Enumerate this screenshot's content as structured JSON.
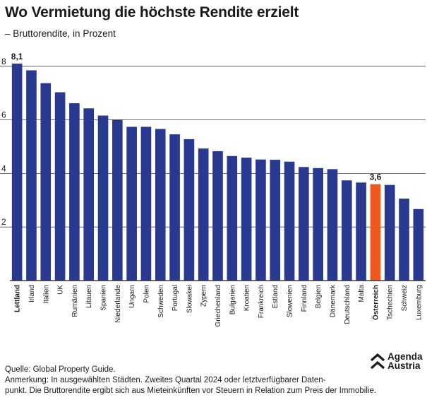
{
  "title": "Wo Vermietung die höchste Rendite erzielt",
  "subtitle": "– Bruttorendite, in Prozent",
  "chart_data": {
    "type": "bar",
    "title": "Wo Vermietung die höchste Rendite erzielt",
    "subtitle": "– Bruttorendite, in Prozent",
    "xlabel": "",
    "ylabel": "",
    "ylim": [
      0,
      8.4
    ],
    "yticks": [
      2,
      4,
      6,
      8
    ],
    "grid": true,
    "categories": [
      "Lettland",
      "Irland",
      "Italien",
      "UK",
      "Rumänien",
      "Litauen",
      "Spanien",
      "Niederlande",
      "Ungarn",
      "Polen",
      "Schweden",
      "Portugal",
      "Slowakei",
      "Zypern",
      "Griechenland",
      "Bulgarien",
      "Kroatien",
      "Frankreich",
      "Estland",
      "Slowenien",
      "Finnland",
      "Belgien",
      "Dänemark",
      "Deutschland",
      "Malta",
      "Österreich",
      "Tschechien",
      "Schweiz",
      "Luxemburg"
    ],
    "values": [
      8.1,
      7.85,
      7.37,
      7.03,
      6.62,
      6.43,
      6.16,
      6.01,
      5.74,
      5.74,
      5.66,
      5.46,
      5.28,
      4.93,
      4.83,
      4.65,
      4.59,
      4.52,
      4.51,
      4.44,
      4.24,
      4.2,
      4.16,
      3.74,
      3.66,
      3.6,
      3.57,
      3.06,
      2.67
    ],
    "data_labels": [
      {
        "category": "Lettland",
        "text": "8,1"
      },
      {
        "category": "Österreich",
        "text": "3,6"
      }
    ],
    "bold_categories": [
      "Lettland",
      "Österreich"
    ],
    "bar_color": "#2a3990",
    "highlight_color": "#ef5a1c",
    "highlight_category": "Österreich",
    "gridline_color": "#4a4a4a"
  },
  "footer": {
    "source": "Quelle: Global Property Guide.",
    "note_line1": "Anmerkung: In ausgewählten Städten. Zweites Quartal 2024 oder letztverfügbarer Daten-",
    "note_line2": "punkt. Die Bruttorendite ergibt sich aus Mieteinkünften vor Steuern in Relation zum Preis der Immobilie."
  },
  "logo": {
    "line1": "Agenda",
    "line2": "Austria",
    "icon": "agenda-austria-logo-icon"
  }
}
